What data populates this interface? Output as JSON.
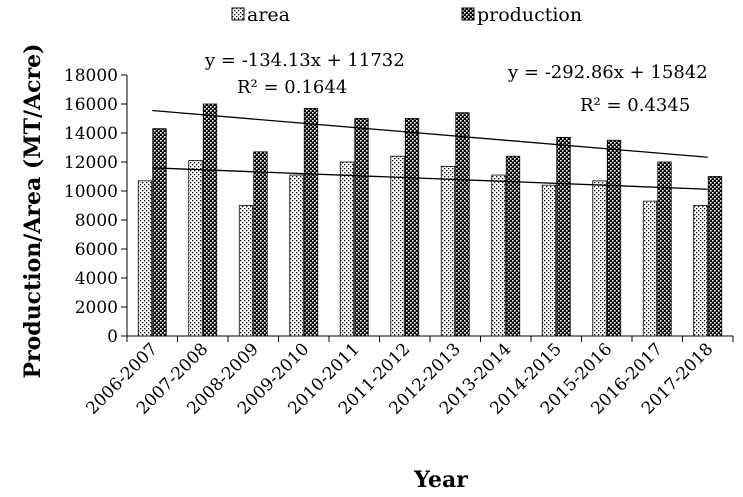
{
  "chart_data": {
    "type": "bar",
    "categories": [
      "2006-2007",
      "2007-2008",
      "2008-2009",
      "2009-2010",
      "2010-2011",
      "2011-2012",
      "2012-2013",
      "2013-2014",
      "2014-2015",
      "2015-2016",
      "2016-2017",
      "2017-2018"
    ],
    "series": [
      {
        "name": "area",
        "values": [
          10700,
          12100,
          9000,
          11100,
          12000,
          12400,
          11700,
          11100,
          10400,
          10700,
          9300,
          9000
        ],
        "pattern": "dots",
        "color": "#ffffff"
      },
      {
        "name": "production",
        "values": [
          14300,
          16000,
          12700,
          15700,
          15000,
          15000,
          15400,
          12400,
          13700,
          13500,
          12000,
          11000
        ],
        "pattern": "checker",
        "color": "#000000"
      }
    ],
    "trendlines": [
      {
        "series": "area",
        "slope": -134.13,
        "intercept": 11732,
        "equation": "y = -134.13x + 11732",
        "r2": "R² = 0.1644"
      },
      {
        "series": "production",
        "slope": -292.86,
        "intercept": 15842,
        "equation": "y = -292.86x + 15842",
        "r2": "R² = 0.4345"
      }
    ],
    "xlabel": "Year",
    "ylabel": "Production/Area (MT/Acre)",
    "ylim": [
      0,
      18000
    ],
    "yticks": [
      0,
      2000,
      4000,
      6000,
      8000,
      10000,
      12000,
      14000,
      16000,
      18000
    ],
    "grid": false,
    "legend_position": "top"
  }
}
